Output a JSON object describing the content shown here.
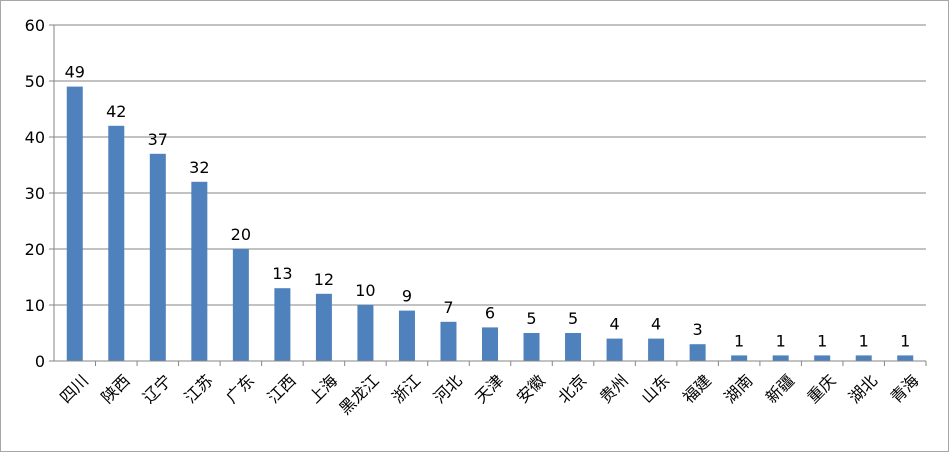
{
  "chart_data": {
    "type": "bar",
    "title": "",
    "xlabel": "",
    "ylabel": "",
    "categories": [
      "四川",
      "陕西",
      "辽宁",
      "江苏",
      "广东",
      "江西",
      "上海",
      "黑龙江",
      "浙江",
      "河北",
      "天津",
      "安徽",
      "北京",
      "贵州",
      "山东",
      "福建",
      "湖南",
      "新疆",
      "重庆",
      "湖北",
      "青海"
    ],
    "values": [
      49,
      42,
      37,
      32,
      20,
      13,
      12,
      10,
      9,
      7,
      6,
      5,
      5,
      4,
      4,
      3,
      1,
      1,
      1,
      1,
      1
    ],
    "ylim": [
      0,
      60
    ],
    "yticks": [
      "0",
      "10",
      "20",
      "30",
      "40",
      "50",
      "60"
    ],
    "grid": true,
    "legend": "none",
    "bar_color": "#4f81bd",
    "grid_color": "#868686"
  }
}
